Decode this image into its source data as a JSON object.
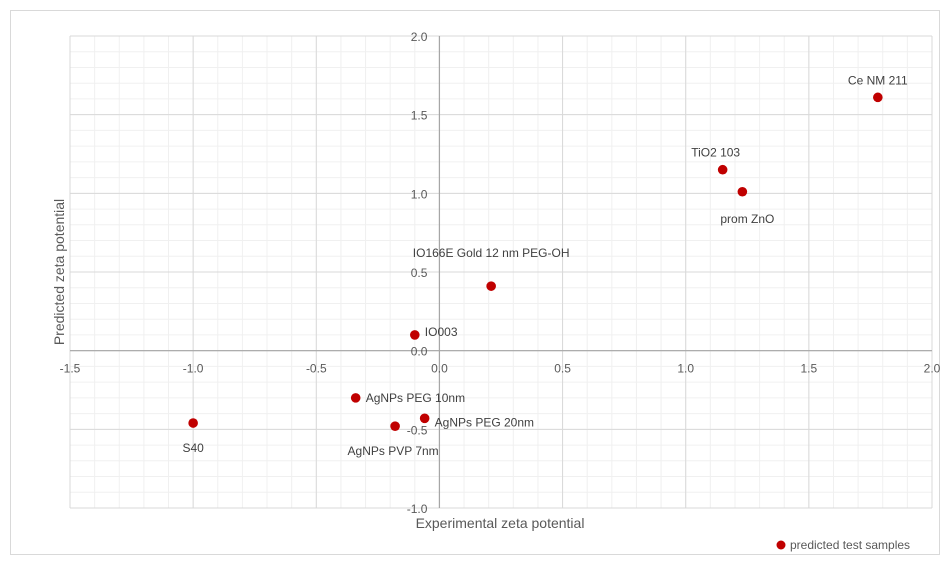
{
  "chart_data": {
    "type": "scatter",
    "xlabel": "Experimental zeta potential",
    "ylabel": "Predicted zeta potential",
    "xlim": [
      -1.5,
      2.0
    ],
    "ylim": [
      -1.0,
      2.0
    ],
    "x_ticks": [
      "-1.5",
      "-1.0",
      "-0.5",
      "0.0",
      "0.5",
      "1.0",
      "1.5",
      "2.0"
    ],
    "y_ticks": [
      "-1.0",
      "-0.5",
      "0.0",
      "0.5",
      "1.0",
      "1.5",
      "2.0"
    ],
    "grid": true,
    "legend_position": "bottom-right",
    "series": [
      {
        "name": "predicted test samples",
        "color": "#c00000",
        "points": [
          {
            "label": "S40",
            "x": -1.0,
            "y": -0.46
          },
          {
            "label": "AgNPs PEG 10nm",
            "x": -0.34,
            "y": -0.3
          },
          {
            "label": "AgNPs PVP 7nm",
            "x": -0.18,
            "y": -0.48
          },
          {
            "label": "AgNPs PEG 20nm",
            "x": -0.06,
            "y": -0.43
          },
          {
            "label": "IO003",
            "x": -0.1,
            "y": 0.1
          },
          {
            "label": "IO166E Gold 12 nm PEG-OH",
            "x": 0.21,
            "y": 0.41
          },
          {
            "label": "TiO2 103",
            "x": 1.15,
            "y": 1.15
          },
          {
            "label": "prom ZnO",
            "x": 1.23,
            "y": 1.01
          },
          {
            "label": "Ce NM 211",
            "x": 1.78,
            "y": 1.61
          }
        ]
      }
    ]
  }
}
